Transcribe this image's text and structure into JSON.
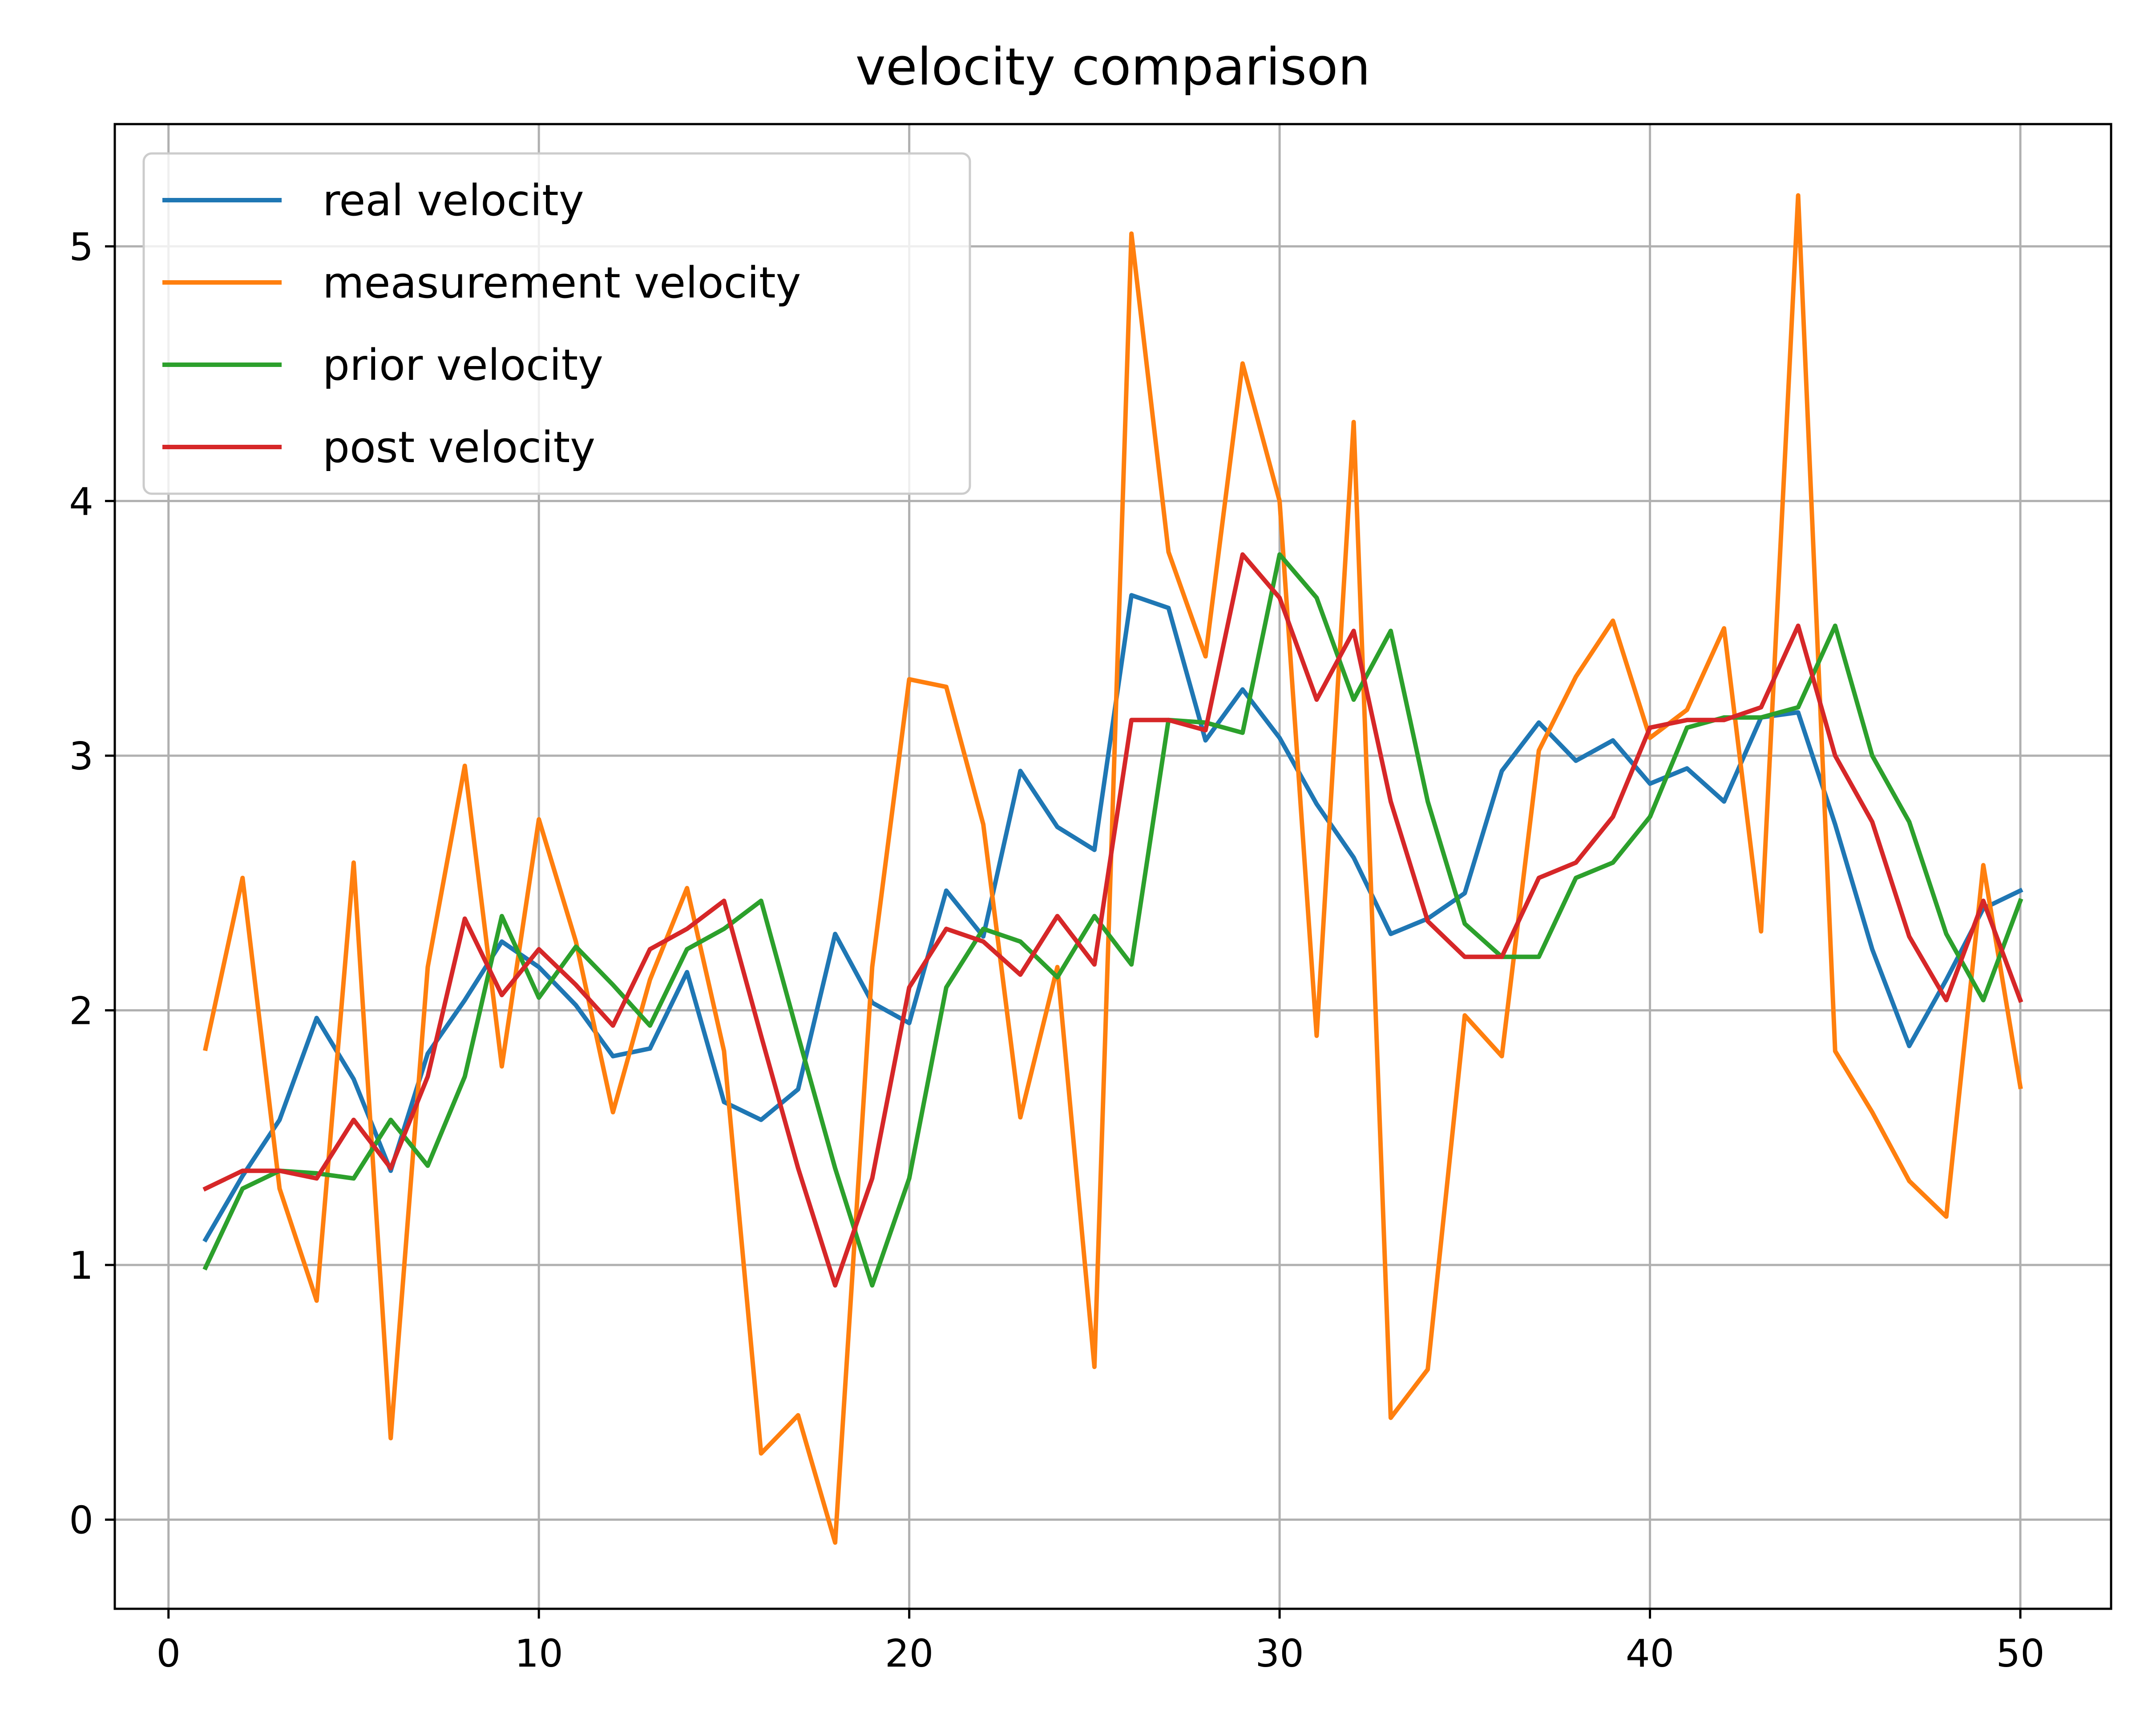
{
  "chart_data": {
    "type": "line",
    "title": "velocity comparison",
    "xlabel": "",
    "ylabel": "",
    "xlim": [
      -1.45,
      52.45
    ],
    "ylim": [
      -0.35,
      5.48
    ],
    "x_ticks": [
      0,
      10,
      20,
      30,
      40,
      50
    ],
    "y_ticks": [
      0,
      1,
      2,
      3,
      4,
      5
    ],
    "grid": true,
    "legend_position": "top-left",
    "x": [
      1,
      2,
      3,
      4,
      5,
      6,
      7,
      8,
      9,
      10,
      11,
      12,
      13,
      14,
      15,
      16,
      17,
      18,
      19,
      20,
      21,
      22,
      23,
      24,
      25,
      26,
      27,
      28,
      29,
      30,
      31,
      32,
      33,
      34,
      35,
      36,
      37,
      38,
      39,
      40,
      41,
      42,
      43,
      44,
      45,
      46,
      47,
      48,
      49,
      50
    ],
    "series": [
      {
        "name": "real velocity",
        "color": "#1f77b4",
        "values": [
          1.1,
          1.35,
          1.57,
          1.97,
          1.73,
          1.37,
          1.83,
          2.04,
          2.27,
          2.17,
          2.02,
          1.82,
          1.85,
          2.15,
          1.64,
          1.57,
          1.69,
          2.3,
          2.03,
          1.95,
          2.47,
          2.29,
          2.94,
          2.72,
          2.63,
          3.63,
          3.58,
          3.06,
          3.26,
          3.07,
          2.81,
          2.6,
          2.3,
          2.36,
          2.46,
          2.94,
          3.13,
          2.98,
          3.06,
          2.89,
          2.95,
          2.82,
          3.15,
          3.17,
          2.73,
          2.24,
          1.86,
          2.12,
          2.4,
          2.47
        ]
      },
      {
        "name": "measurement velocity",
        "color": "#ff7f0e",
        "values": [
          1.85,
          2.52,
          1.3,
          0.86,
          2.58,
          0.32,
          2.17,
          2.96,
          1.78,
          2.75,
          2.27,
          1.6,
          2.12,
          2.48,
          1.84,
          0.26,
          0.41,
          -0.09,
          2.17,
          3.3,
          3.27,
          2.73,
          1.58,
          2.17,
          0.6,
          5.05,
          3.8,
          3.39,
          4.54,
          4.0,
          1.9,
          4.31,
          0.4,
          0.59,
          1.98,
          1.82,
          3.02,
          3.31,
          3.53,
          3.07,
          3.18,
          3.5,
          2.31,
          5.2,
          1.84,
          1.6,
          1.33,
          1.19,
          2.57,
          1.7
        ]
      },
      {
        "name": "prior velocity",
        "color": "#2ca02c",
        "values": [
          0.99,
          1.3,
          1.37,
          1.36,
          1.34,
          1.57,
          1.39,
          1.74,
          2.37,
          2.05,
          2.25,
          2.1,
          1.94,
          2.24,
          2.32,
          2.43,
          1.9,
          1.38,
          0.92,
          1.34,
          2.09,
          2.32,
          2.27,
          2.13,
          2.37,
          2.18,
          3.14,
          3.13,
          3.09,
          3.79,
          3.62,
          3.22,
          3.49,
          2.82,
          2.34,
          2.21,
          2.21,
          2.52,
          2.58,
          2.76,
          3.11,
          3.15,
          3.15,
          3.19,
          3.51,
          3.0,
          2.74,
          2.3,
          2.04,
          2.43
        ]
      },
      {
        "name": "post velocity",
        "color": "#d62728",
        "values": [
          1.3,
          1.37,
          1.37,
          1.34,
          1.57,
          1.38,
          1.74,
          2.36,
          2.06,
          2.24,
          2.1,
          1.94,
          2.24,
          2.32,
          2.43,
          1.9,
          1.38,
          0.92,
          1.34,
          2.09,
          2.32,
          2.27,
          2.14,
          2.37,
          2.18,
          3.14,
          3.14,
          3.1,
          3.79,
          3.62,
          3.22,
          3.49,
          2.82,
          2.35,
          2.21,
          2.21,
          2.52,
          2.58,
          2.76,
          3.11,
          3.14,
          3.14,
          3.19,
          3.51,
          3.0,
          2.74,
          2.29,
          2.04,
          2.43,
          2.04
        ]
      }
    ]
  }
}
